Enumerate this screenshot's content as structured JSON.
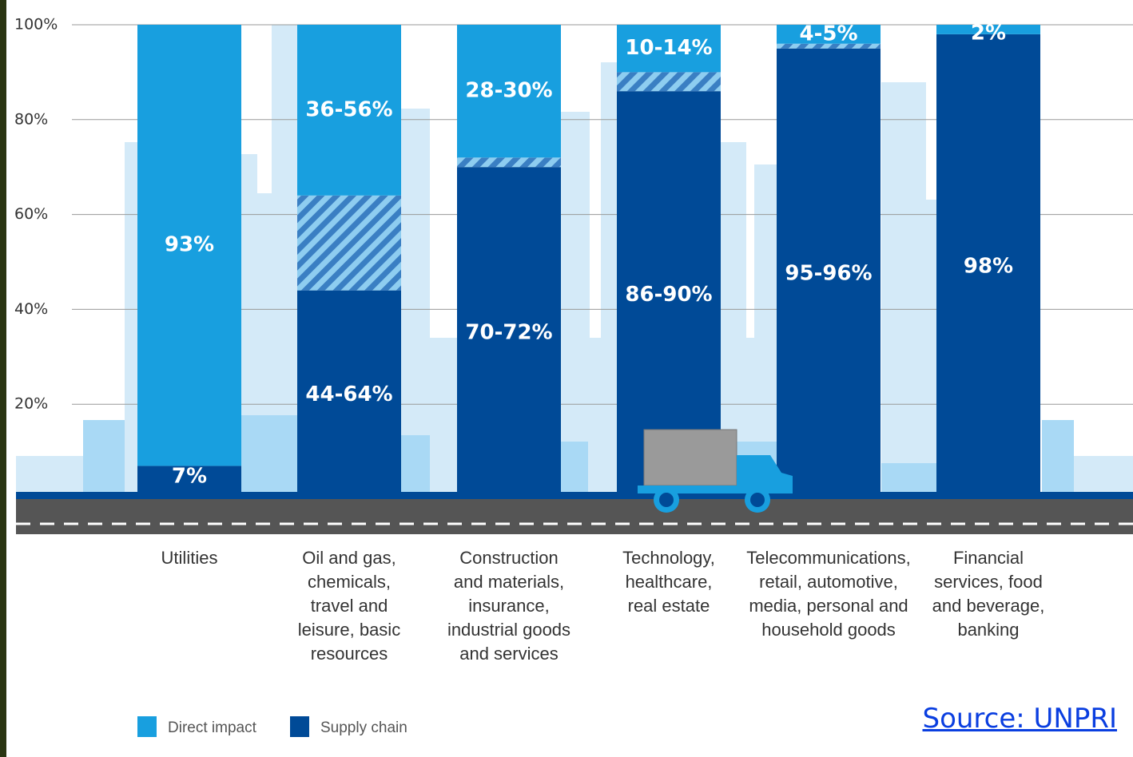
{
  "chart_data": {
    "type": "range-stacked-bar",
    "categories": [
      "Utilities",
      "Oil and gas,\nchemicals,\ntravel and\nleisure, basic\nresources",
      "Construction\nand materials,\ninsurance,\nindustrial goods\nand services",
      "Technology,\nhealthcare,\nreal estate",
      "Telecommunications,\nretail, automotive,\nmedia, personal and\nhousehold goods",
      "Financial\nservices, food\nand beverage,\nbanking"
    ],
    "series": [
      {
        "name": "Direct impact",
        "color": "#189fdf",
        "values": [
          [
            93,
            93
          ],
          [
            36,
            56
          ],
          [
            28,
            30
          ],
          [
            10,
            14
          ],
          [
            4,
            5
          ],
          [
            2,
            2
          ]
        ],
        "value_labels": [
          "93%",
          "36-56%",
          "28-30%",
          "10-14%",
          "4-5%",
          "2%"
        ]
      },
      {
        "name": "Supply chain",
        "color": "#004a97",
        "values": [
          [
            7,
            7
          ],
          [
            44,
            64
          ],
          [
            70,
            72
          ],
          [
            86,
            90
          ],
          [
            95,
            96
          ],
          [
            98,
            98
          ]
        ],
        "value_labels": [
          "7%",
          "44-64%",
          "70-72%",
          "86-90%",
          "95-96%",
          "98%"
        ]
      }
    ],
    "ylim": [
      0,
      100
    ],
    "yticks": [
      {
        "value": 20,
        "label": "20%"
      },
      {
        "value": 40,
        "label": "40%"
      },
      {
        "value": 60,
        "label": "60%"
      },
      {
        "value": 80,
        "label": "80%"
      },
      {
        "value": 100,
        "label": "100%"
      }
    ],
    "grid": true,
    "source": "Source: UNPRI"
  }
}
